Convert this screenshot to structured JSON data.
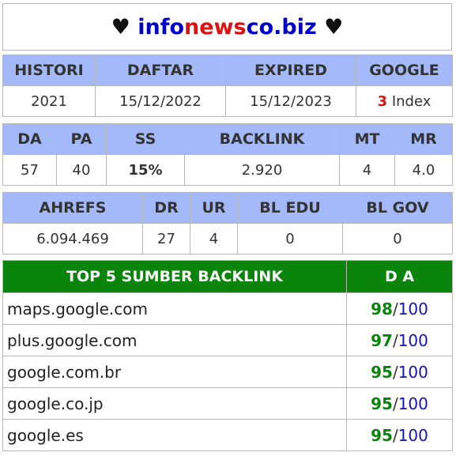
{
  "title": {
    "left_symbol": "♥",
    "right_symbol": "♥",
    "domain_part1": "info",
    "domain_part2": "news",
    "domain_part3": "co.biz"
  },
  "table1": {
    "headers": [
      "HISTORI",
      "DAFTAR",
      "EXPIRED",
      "GOOGLE"
    ],
    "values": {
      "histori": "2021",
      "daftar": "15/12/2022",
      "expired": "15/12/2023",
      "google_count": "3",
      "google_label": "Index"
    }
  },
  "table2": {
    "headers": [
      "DA",
      "PA",
      "SS",
      "BACKLINK",
      "MT",
      "MR"
    ],
    "values": [
      "57",
      "40",
      "15%",
      "2.920",
      "4",
      "4.0"
    ]
  },
  "table3": {
    "headers": [
      "AHREFS",
      "DR",
      "UR",
      "BL EDU",
      "BL GOV"
    ],
    "values": [
      "6.094.469",
      "27",
      "4",
      "0",
      "0"
    ]
  },
  "top_backlinks": {
    "header_site": "TOP 5 SUMBER BACKLINK",
    "header_da": "D A",
    "separator": "/",
    "rows": [
      {
        "site": "maps.google.com",
        "da": "98",
        "max": "100"
      },
      {
        "site": "plus.google.com",
        "da": "97",
        "max": "100"
      },
      {
        "site": "google.com.br",
        "da": "95",
        "max": "100"
      },
      {
        "site": "google.co.jp",
        "da": "95",
        "max": "100"
      },
      {
        "site": "google.es",
        "da": "95",
        "max": "100"
      }
    ]
  },
  "colors": {
    "header_bg": "#a4b9fa",
    "top_header_bg": "#0a840a",
    "domain_blue": "#0000cc",
    "domain_red": "#dd1111",
    "ss_color": "#1fc0c0",
    "google_count_color": "#e01010"
  }
}
